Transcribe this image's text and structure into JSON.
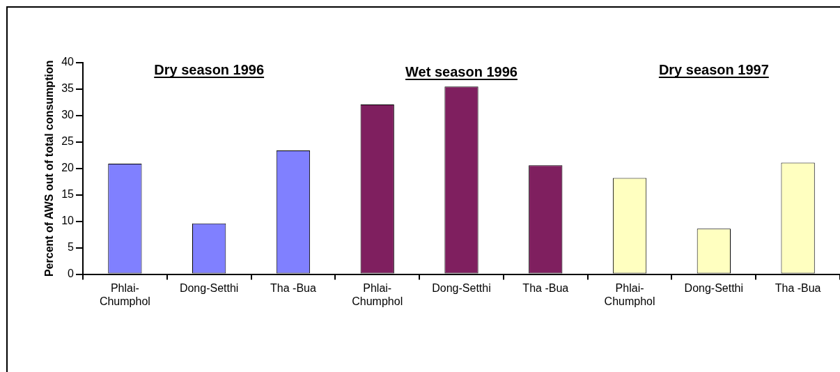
{
  "chart_data": {
    "type": "bar",
    "ylabel": "Percent of AWS out of total consumption",
    "categories": [
      "Phlai-\nChumphol",
      "Dong-Setthi",
      "Tha -Bua",
      "Phlai-\nChumphol",
      "Dong-Setthi",
      "Tha -Bua",
      "Phlai-\nChumphol",
      "Dong-Setthi",
      "Tha -Bua"
    ],
    "values": [
      20.9,
      9.6,
      23.4,
      32.1,
      35.5,
      20.6,
      18.2,
      8.6,
      21.1
    ],
    "colors": [
      "#8080ff",
      "#8080ff",
      "#8080ff",
      "#7f1f5f",
      "#7f1f5f",
      "#7f1f5f",
      "#ffffc0",
      "#ffffc0",
      "#ffffc0"
    ],
    "annotations": [
      "Dry season 1996",
      "Wet season 1996",
      "Dry season 1997"
    ],
    "ylim": [
      0,
      40
    ],
    "yticks": [
      0,
      5,
      10,
      15,
      20,
      25,
      30,
      35,
      40
    ],
    "grid": false,
    "legend": false
  }
}
